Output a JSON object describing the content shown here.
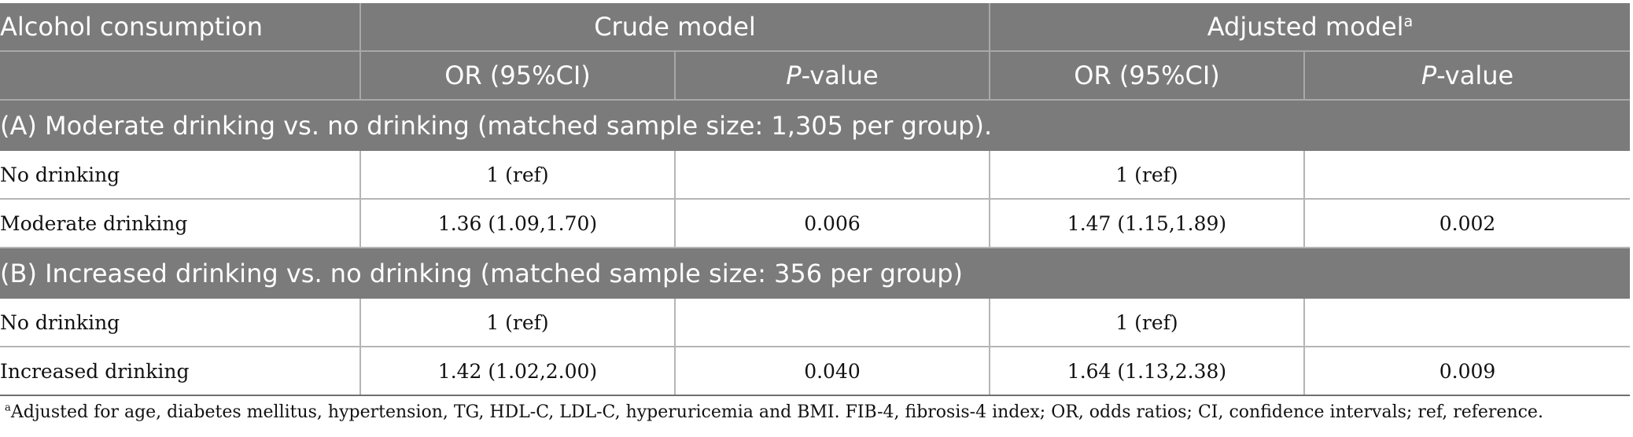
{
  "header": {
    "alcohol_consumption": "Alcohol consumption",
    "crude_model": "Crude model",
    "adjusted_model": "Adjusted model",
    "adjusted_marker": "a",
    "or_ci": "OR (95%CI)",
    "p_letter": "P",
    "p_suffix": "-value"
  },
  "sections": [
    {
      "title": "(A) Moderate drinking vs. no drinking (matched sample size: 1,305 per group).",
      "rows": [
        {
          "label": "No drinking",
          "crude_or": "1 (ref)",
          "crude_p": "",
          "adj_or": "1 (ref)",
          "adj_p": ""
        },
        {
          "label": "Moderate drinking",
          "crude_or": "1.36 (1.09,1.70)",
          "crude_p": "0.006",
          "adj_or": "1.47 (1.15,1.89)",
          "adj_p": "0.002"
        }
      ]
    },
    {
      "title": "(B) Increased drinking vs. no drinking (matched sample size: 356 per group)",
      "rows": [
        {
          "label": "No drinking",
          "crude_or": "1 (ref)",
          "crude_p": "",
          "adj_or": "1 (ref)",
          "adj_p": ""
        },
        {
          "label": "Increased drinking",
          "crude_or": "1.42 (1.02,2.00)",
          "crude_p": "0.040",
          "adj_or": "1.64 (1.13,2.38)",
          "adj_p": "0.009"
        }
      ]
    }
  ],
  "footnote": {
    "marker": "a",
    "text": "Adjusted for age, diabetes mellitus, hypertension, TG, HDL-C, LDL-C, hyperuricemia and BMI. FIB-4, fibrosis-4 index; OR, odds ratios; CI, confidence intervals; ref, reference."
  },
  "colors": {
    "header_bg": "#7b7b7b",
    "header_text": "#ffffff",
    "body_text": "#111111",
    "grid": "#b5b5b5"
  }
}
